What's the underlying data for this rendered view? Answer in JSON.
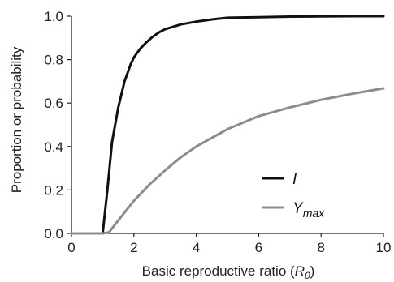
{
  "chart_data": {
    "type": "line",
    "xlabel": "Basic reproductive ratio (R0)",
    "xlabel_parts": {
      "main": "Basic reproductive ratio (",
      "symbol": "R",
      "subscript": "0",
      "close": ")"
    },
    "ylabel": "Proportion or probability",
    "xlim": [
      0,
      10
    ],
    "ylim": [
      0,
      1.0
    ],
    "x_ticks": [
      0,
      2,
      4,
      6,
      8,
      10
    ],
    "x_tick_labels": [
      "0",
      "2",
      "4",
      "6",
      "8",
      "10"
    ],
    "y_ticks": [
      0,
      0.2,
      0.4,
      0.6,
      0.8,
      1.0
    ],
    "y_tick_labels": [
      "0.0",
      "0.2",
      "0.4",
      "0.6",
      "0.8",
      "1.0"
    ],
    "grid": false,
    "legend_position": "lower-right",
    "series": [
      {
        "name": "I",
        "legend_main": "I",
        "legend_sub": "",
        "color": "#111111",
        "x": [
          0,
          1.0,
          1.15,
          1.3,
          1.5,
          1.7,
          1.9,
          2.0,
          2.2,
          2.4,
          2.6,
          2.8,
          3.0,
          3.5,
          4.0,
          4.5,
          5.0,
          6.0,
          7.0,
          8.0,
          9.0,
          10.0
        ],
        "y": [
          0,
          0,
          0.2,
          0.42,
          0.58,
          0.7,
          0.78,
          0.81,
          0.85,
          0.88,
          0.905,
          0.925,
          0.94,
          0.962,
          0.975,
          0.985,
          0.993,
          0.995,
          0.998,
          0.999,
          1.0,
          1.0
        ]
      },
      {
        "name": "Ymax",
        "legend_main": "Y",
        "legend_sub": "max",
        "color": "#8c8c8c",
        "x": [
          0,
          1.0,
          1.2,
          1.5,
          2.0,
          2.5,
          3.0,
          3.5,
          4.0,
          5.0,
          6.0,
          7.0,
          8.0,
          9.0,
          10.0
        ],
        "y": [
          0,
          0,
          0.005,
          0.06,
          0.15,
          0.225,
          0.29,
          0.35,
          0.4,
          0.48,
          0.54,
          0.58,
          0.615,
          0.643,
          0.668
        ]
      }
    ]
  }
}
